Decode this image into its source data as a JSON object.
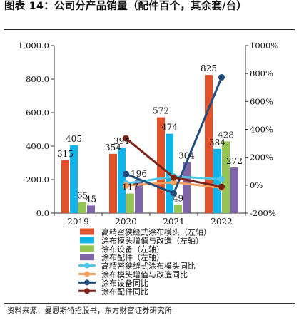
{
  "header": {
    "title": "图表 14：公司分产品销量（配件百个，其余套/台）"
  },
  "footer": {
    "source": "资料来源：曼恩斯特招股书，东方财富证券研究所"
  },
  "chart_data": {
    "type": "bar",
    "categories": [
      "2019",
      "2020",
      "2021",
      "2022"
    ],
    "y_left": {
      "range": [
        0,
        1000
      ],
      "ticks": [
        "0.0",
        "200.0",
        "400.0",
        "600.0",
        "800.0",
        "1,000.0"
      ]
    },
    "y_right": {
      "range": [
        -200,
        1000
      ],
      "unit": "%",
      "ticks": [
        "-200%",
        "0%",
        "200%",
        "400%",
        "600%",
        "800%",
        "1000%"
      ]
    },
    "series": [
      {
        "name": "高精密狭缝式涂布模头（左轴）",
        "kind": "bar",
        "axis": "left",
        "color": "#e0522b",
        "values": [
          315,
          354,
          572,
          825
        ]
      },
      {
        "name": "涂布模头增值与改造（左轴）",
        "kind": "bar",
        "axis": "left",
        "color": "#10b4e8",
        "values": [
          405,
          391,
          474,
          384
        ]
      },
      {
        "name": "涂布设备（左轴）",
        "kind": "bar",
        "axis": "left",
        "color": "#93c454",
        "values": [
          65,
          117,
          49,
          428
        ]
      },
      {
        "name": "涂布配件（左轴）",
        "kind": "bar",
        "axis": "left",
        "color": "#8064a8",
        "values": [
          45,
          196,
          304,
          272
        ]
      },
      {
        "name": "高精密狭缝式涂布模头同比",
        "kind": "line",
        "axis": "right",
        "color": "#54c4e4",
        "values": [
          null,
          12,
          62,
          44
        ]
      },
      {
        "name": "涂布模头增值与改造同比",
        "kind": "line",
        "axis": "right",
        "color": "#f4a060",
        "values": [
          null,
          -3,
          21,
          -19
        ]
      },
      {
        "name": "涂布设备同比",
        "kind": "line",
        "axis": "right",
        "color": "#234c7c",
        "values": [
          null,
          80,
          -58,
          773
        ]
      },
      {
        "name": "涂布配件同比",
        "kind": "line",
        "axis": "right",
        "color": "#7c2418",
        "values": [
          null,
          336,
          55,
          -11
        ]
      }
    ],
    "data_labels": [
      {
        "text": "315",
        "category": "2019",
        "series": 0,
        "value": 315
      },
      {
        "text": "405",
        "category": "2019",
        "series": 1,
        "value": 405
      },
      {
        "text": "65",
        "category": "2019",
        "series": 2,
        "value": 65
      },
      {
        "text": "45",
        "category": "2019",
        "series": 3,
        "value": 45
      },
      {
        "text": "354",
        "category": "2020",
        "series": 0,
        "value": 354
      },
      {
        "text": "391",
        "category": "2020",
        "series": 1,
        "value": 391
      },
      {
        "text": "117",
        "category": "2020",
        "series": 2,
        "value": 117
      },
      {
        "text": "196",
        "category": "2020",
        "series": 3,
        "value": 196
      },
      {
        "text": "572",
        "category": "2021",
        "series": 0,
        "value": 572
      },
      {
        "text": "474",
        "category": "2021",
        "series": 1,
        "value": 474
      },
      {
        "text": "49",
        "category": "2021",
        "series": 2,
        "value": 49
      },
      {
        "text": "304",
        "category": "2021",
        "series": 3,
        "value": 304
      },
      {
        "text": "825",
        "category": "2022",
        "series": 0,
        "value": 825
      },
      {
        "text": "384",
        "category": "2022",
        "series": 1,
        "value": 384
      },
      {
        "text": "428",
        "category": "2022",
        "series": 2,
        "value": 428
      },
      {
        "text": "272",
        "category": "2022",
        "series": 3,
        "value": 272
      }
    ],
    "legend_position": "bottom",
    "grid": false
  }
}
